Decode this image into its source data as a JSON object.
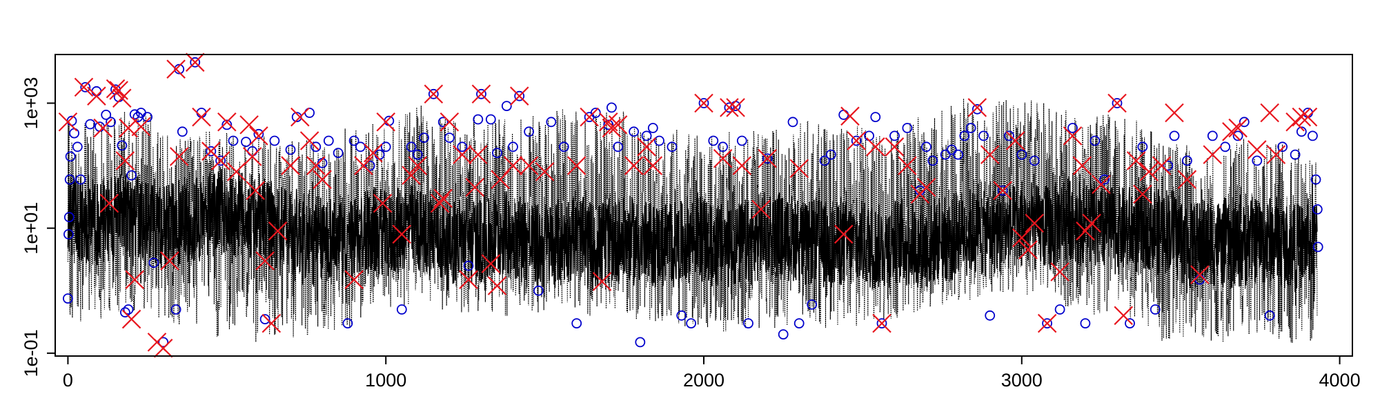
{
  "chart_data": {
    "type": "line",
    "title": "",
    "xlabel": "",
    "ylabel": "",
    "y_scale": "log",
    "grid": false,
    "legend": "none",
    "xlim": [
      -40,
      4040
    ],
    "ylim": [
      0.09,
      6000
    ],
    "x_ticks": [
      0,
      1000,
      2000,
      3000,
      4000
    ],
    "x_tick_labels": [
      "0",
      "1000",
      "2000",
      "3000",
      "4000"
    ],
    "y_ticks": [
      0.1,
      10,
      1000
    ],
    "y_tick_labels": [
      "1e-01",
      "1e+01",
      "1e+03"
    ],
    "n_points": 3930,
    "series": [
      {
        "style": "dotted black line, solid black inner band",
        "color": "#000000",
        "value_range": [
          0.1,
          2000
        ],
        "typical_range": [
          2,
          60
        ]
      },
      {
        "marker": "circle",
        "color": "#0000cc",
        "points": [
          [
            0,
            0.75
          ],
          [
            2,
            8
          ],
          [
            4,
            15
          ],
          [
            6,
            60
          ],
          [
            8,
            140
          ],
          [
            12,
            520
          ],
          [
            20,
            330
          ],
          [
            30,
            200
          ],
          [
            40,
            60
          ],
          [
            55,
            1800
          ],
          [
            70,
            460
          ],
          [
            90,
            1550
          ],
          [
            100,
            420
          ],
          [
            120,
            650
          ],
          [
            135,
            500
          ],
          [
            150,
            1650
          ],
          [
            160,
            1250
          ],
          [
            170,
            210
          ],
          [
            180,
            0.45
          ],
          [
            190,
            0.5
          ],
          [
            200,
            70
          ],
          [
            210,
            660
          ],
          [
            220,
            600
          ],
          [
            230,
            700
          ],
          [
            250,
            600
          ],
          [
            270,
            2.8
          ],
          [
            300,
            0.15
          ],
          [
            340,
            0.5
          ],
          [
            350,
            3500
          ],
          [
            360,
            350
          ],
          [
            400,
            4500
          ],
          [
            420,
            700
          ],
          [
            450,
            170
          ],
          [
            480,
            120
          ],
          [
            500,
            450
          ],
          [
            520,
            250
          ],
          [
            560,
            240
          ],
          [
            580,
            170
          ],
          [
            600,
            320
          ],
          [
            620,
            0.35
          ],
          [
            650,
            250
          ],
          [
            700,
            180
          ],
          [
            720,
            600
          ],
          [
            760,
            700
          ],
          [
            780,
            200
          ],
          [
            800,
            110
          ],
          [
            820,
            250
          ],
          [
            850,
            160
          ],
          [
            880,
            0.3
          ],
          [
            900,
            250
          ],
          [
            920,
            200
          ],
          [
            950,
            100
          ],
          [
            980,
            150
          ],
          [
            1000,
            200
          ],
          [
            1010,
            520
          ],
          [
            1050,
            0.5
          ],
          [
            1080,
            200
          ],
          [
            1100,
            150
          ],
          [
            1120,
            280
          ],
          [
            1150,
            1400
          ],
          [
            1180,
            500
          ],
          [
            1200,
            280
          ],
          [
            1240,
            200
          ],
          [
            1260,
            2.5
          ],
          [
            1290,
            550
          ],
          [
            1300,
            1400
          ],
          [
            1330,
            550
          ],
          [
            1350,
            160
          ],
          [
            1380,
            900
          ],
          [
            1400,
            200
          ],
          [
            1420,
            1300
          ],
          [
            1450,
            350
          ],
          [
            1480,
            1.0
          ],
          [
            1520,
            500
          ],
          [
            1560,
            200
          ],
          [
            1600,
            0.3
          ],
          [
            1640,
            600
          ],
          [
            1660,
            700
          ],
          [
            1700,
            450
          ],
          [
            1710,
            850
          ],
          [
            1730,
            200
          ],
          [
            1780,
            350
          ],
          [
            1800,
            0.15
          ],
          [
            1820,
            300
          ],
          [
            1840,
            400
          ],
          [
            1860,
            250
          ],
          [
            1900,
            200
          ],
          [
            1930,
            0.4
          ],
          [
            1960,
            0.3
          ],
          [
            2000,
            1000
          ],
          [
            2030,
            250
          ],
          [
            2060,
            200
          ],
          [
            2080,
            850
          ],
          [
            2100,
            900
          ],
          [
            2120,
            250
          ],
          [
            2140,
            0.3
          ],
          [
            2200,
            130
          ],
          [
            2250,
            0.2
          ],
          [
            2280,
            500
          ],
          [
            2300,
            0.3
          ],
          [
            2340,
            0.6
          ],
          [
            2380,
            120
          ],
          [
            2400,
            150
          ],
          [
            2440,
            650
          ],
          [
            2480,
            250
          ],
          [
            2520,
            300
          ],
          [
            2540,
            600
          ],
          [
            2560,
            0.3
          ],
          [
            2600,
            300
          ],
          [
            2640,
            400
          ],
          [
            2680,
            40
          ],
          [
            2700,
            200
          ],
          [
            2720,
            120
          ],
          [
            2760,
            150
          ],
          [
            2780,
            180
          ],
          [
            2800,
            150
          ],
          [
            2820,
            300
          ],
          [
            2840,
            400
          ],
          [
            2860,
            800
          ],
          [
            2880,
            300
          ],
          [
            2900,
            0.4
          ],
          [
            2940,
            40
          ],
          [
            2960,
            300
          ],
          [
            3000,
            150
          ],
          [
            3040,
            120
          ],
          [
            3080,
            0.3
          ],
          [
            3120,
            0.5
          ],
          [
            3160,
            400
          ],
          [
            3200,
            0.3
          ],
          [
            3230,
            250
          ],
          [
            3260,
            60
          ],
          [
            3300,
            1000
          ],
          [
            3340,
            0.3
          ],
          [
            3380,
            200
          ],
          [
            3420,
            0.5
          ],
          [
            3460,
            100
          ],
          [
            3480,
            300
          ],
          [
            3520,
            120
          ],
          [
            3560,
            1.5
          ],
          [
            3600,
            300
          ],
          [
            3640,
            200
          ],
          [
            3680,
            300
          ],
          [
            3700,
            500
          ],
          [
            3740,
            120
          ],
          [
            3780,
            0.4
          ],
          [
            3820,
            200
          ],
          [
            3860,
            150
          ],
          [
            3880,
            350
          ],
          [
            3900,
            700
          ],
          [
            3915,
            300
          ],
          [
            3925,
            60
          ],
          [
            3930,
            20
          ],
          [
            3932,
            5
          ]
        ]
      },
      {
        "marker": "cross",
        "color": "#e8171f",
        "points": [
          [
            0,
            500
          ],
          [
            50,
            1800
          ],
          [
            90,
            1300
          ],
          [
            110,
            400
          ],
          [
            130,
            25
          ],
          [
            150,
            1700
          ],
          [
            160,
            1600
          ],
          [
            170,
            1200
          ],
          [
            180,
            120
          ],
          [
            190,
            400
          ],
          [
            200,
            0.35
          ],
          [
            210,
            1.5
          ],
          [
            230,
            420
          ],
          [
            280,
            0.15
          ],
          [
            300,
            0.12
          ],
          [
            320,
            3.0
          ],
          [
            340,
            3500
          ],
          [
            350,
            140
          ],
          [
            400,
            4500
          ],
          [
            420,
            600
          ],
          [
            450,
            170
          ],
          [
            480,
            120
          ],
          [
            500,
            500
          ],
          [
            530,
            80
          ],
          [
            570,
            450
          ],
          [
            580,
            140
          ],
          [
            590,
            40
          ],
          [
            600,
            300
          ],
          [
            620,
            3.0
          ],
          [
            640,
            0.3
          ],
          [
            660,
            9
          ],
          [
            700,
            100
          ],
          [
            730,
            600
          ],
          [
            760,
            250
          ],
          [
            780,
            100
          ],
          [
            800,
            60
          ],
          [
            900,
            1.5
          ],
          [
            930,
            100
          ],
          [
            960,
            160
          ],
          [
            990,
            25
          ],
          [
            1000,
            500
          ],
          [
            1050,
            8
          ],
          [
            1080,
            70
          ],
          [
            1100,
            100
          ],
          [
            1150,
            1400
          ],
          [
            1170,
            25
          ],
          [
            1180,
            30
          ],
          [
            1200,
            500
          ],
          [
            1240,
            150
          ],
          [
            1260,
            1.5
          ],
          [
            1280,
            45
          ],
          [
            1290,
            150
          ],
          [
            1300,
            1400
          ],
          [
            1330,
            2.7
          ],
          [
            1350,
            1.2
          ],
          [
            1360,
            60
          ],
          [
            1400,
            100
          ],
          [
            1420,
            1300
          ],
          [
            1450,
            100
          ],
          [
            1500,
            80
          ],
          [
            1600,
            100
          ],
          [
            1640,
            600
          ],
          [
            1680,
            1.4
          ],
          [
            1700,
            500
          ],
          [
            1710,
            400
          ],
          [
            1730,
            450
          ],
          [
            1780,
            100
          ],
          [
            1820,
            200
          ],
          [
            1840,
            100
          ],
          [
            2000,
            1000
          ],
          [
            2060,
            130
          ],
          [
            2080,
            850
          ],
          [
            2100,
            850
          ],
          [
            2120,
            100
          ],
          [
            2180,
            20
          ],
          [
            2200,
            130
          ],
          [
            2300,
            90
          ],
          [
            2440,
            8
          ],
          [
            2460,
            620
          ],
          [
            2480,
            250
          ],
          [
            2540,
            200
          ],
          [
            2560,
            0.3
          ],
          [
            2600,
            200
          ],
          [
            2640,
            100
          ],
          [
            2680,
            35
          ],
          [
            2700,
            45
          ],
          [
            2860,
            850
          ],
          [
            2900,
            150
          ],
          [
            2940,
            40
          ],
          [
            2980,
            250
          ],
          [
            3000,
            7
          ],
          [
            3020,
            4.5
          ],
          [
            3040,
            12
          ],
          [
            3080,
            0.3
          ],
          [
            3120,
            2
          ],
          [
            3160,
            300
          ],
          [
            3190,
            100
          ],
          [
            3200,
            9
          ],
          [
            3220,
            12
          ],
          [
            3250,
            50
          ],
          [
            3300,
            1000
          ],
          [
            3320,
            0.4
          ],
          [
            3360,
            120
          ],
          [
            3380,
            35
          ],
          [
            3400,
            80
          ],
          [
            3440,
            100
          ],
          [
            3480,
            700
          ],
          [
            3520,
            60
          ],
          [
            3560,
            1.8
          ],
          [
            3600,
            150
          ],
          [
            3660,
            350
          ],
          [
            3680,
            400
          ],
          [
            3740,
            180
          ],
          [
            3780,
            700
          ],
          [
            3800,
            150
          ],
          [
            3860,
            500
          ],
          [
            3880,
            600
          ],
          [
            3900,
            600
          ]
        ]
      }
    ]
  }
}
